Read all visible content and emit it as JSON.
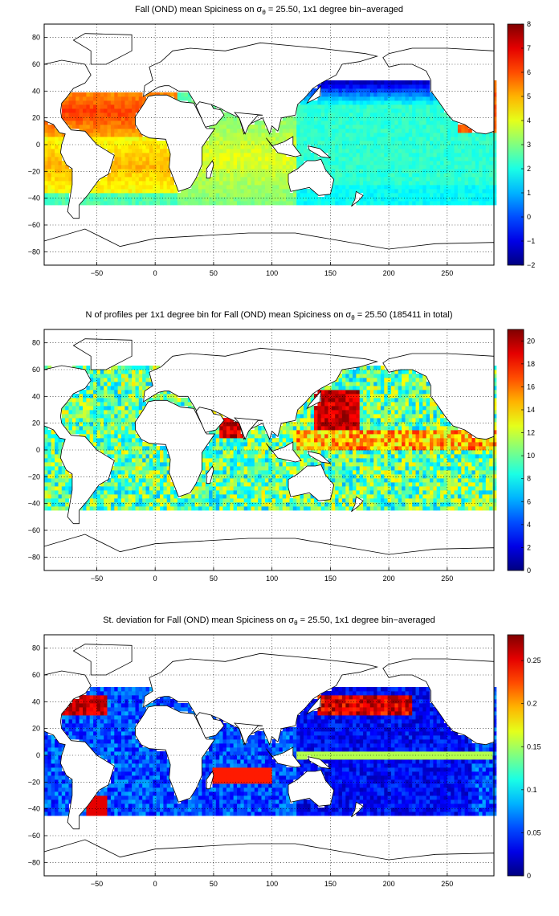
{
  "figure": {
    "panels": [
      {
        "id": "mean",
        "title_pre": "Fall (OND) mean Spiciness on σ",
        "title_sub": "θ",
        "title_post": " = 25.50, 1x1 degree bin−averaged",
        "colorbar": {
          "min": -2,
          "max": 8,
          "ticks": [
            "8",
            "7",
            "6",
            "5",
            "4",
            "3",
            "2",
            "1",
            "0",
            "−1",
            "−2"
          ]
        }
      },
      {
        "id": "count",
        "title_pre": "N of profiles per 1x1 degree bin for Fall (OND) mean Spiciness on σ",
        "title_sub": "θ",
        "title_post": " = 25.50 (185411 in total)",
        "colorbar": {
          "min": 0,
          "max": 21,
          "ticks": [
            "20",
            "18",
            "16",
            "14",
            "12",
            "10",
            "8",
            "6",
            "4",
            "2",
            "0"
          ]
        }
      },
      {
        "id": "stdev",
        "title_pre": "St. deviation for Fall (OND) mean Spiciness on σ",
        "title_sub": "θ",
        "title_post": " = 25.50, 1x1 degree bin−averaged",
        "colorbar": {
          "min": 0,
          "max": 0.28,
          "ticks": [
            "0.25",
            "0.2",
            "0.15",
            "0.1",
            "0.05",
            "0"
          ]
        }
      }
    ],
    "x_ticks": [
      "−50",
      "0",
      "50",
      "100",
      "150",
      "200",
      "250"
    ],
    "y_ticks": [
      "80",
      "60",
      "40",
      "20",
      "0",
      "−20",
      "−40",
      "−60",
      "−80"
    ],
    "colormap": "jet"
  },
  "chart_data": [
    {
      "type": "heatmap",
      "title": "Fall (OND) mean Spiciness on σθ = 25.50, 1x1 degree bin−averaged",
      "xlim": [
        -95,
        290
      ],
      "ylim": [
        -90,
        90
      ],
      "x_ticks": [
        -50,
        0,
        50,
        100,
        150,
        200,
        250
      ],
      "y_ticks": [
        80,
        60,
        40,
        20,
        0,
        -20,
        -40,
        -60,
        -80
      ],
      "colorbar_range": [
        -2,
        8
      ],
      "grid": "dotted",
      "regions": [
        {
          "region": "North Atlantic subtropics",
          "approx_value": 6
        },
        {
          "region": "South Atlantic",
          "approx_value": 5
        },
        {
          "region": "Indian Ocean",
          "approx_value": 3.5
        },
        {
          "region": "North Pacific subpolar",
          "approx_value": -1
        },
        {
          "region": "Pacific tropics",
          "approx_value": 2
        },
        {
          "region": "Southern edge ~40S",
          "approx_value": 1
        }
      ]
    },
    {
      "type": "heatmap",
      "title": "N of profiles per 1x1 degree bin for Fall (OND) mean Spiciness on σθ = 25.50 (185411 in total)",
      "xlim": [
        -95,
        290
      ],
      "ylim": [
        -90,
        90
      ],
      "x_ticks": [
        -50,
        0,
        50,
        100,
        150,
        200,
        250
      ],
      "y_ticks": [
        80,
        60,
        40,
        20,
        0,
        -20,
        -40,
        -60,
        -80
      ],
      "colorbar_range": [
        0,
        21
      ],
      "total_profiles": 185411,
      "regions": [
        {
          "region": "Kuroshio / NW Pacific",
          "approx_value": 20
        },
        {
          "region": "Arabian Sea",
          "approx_value": 18
        },
        {
          "region": "Open ocean typical",
          "approx_value": 8
        }
      ]
    },
    {
      "type": "heatmap",
      "title": "St. deviation for Fall (OND) mean Spiciness on σθ = 25.50, 1x1 degree bin−averaged",
      "xlim": [
        -95,
        290
      ],
      "ylim": [
        -90,
        90
      ],
      "x_ticks": [
        -50,
        0,
        50,
        100,
        150,
        200,
        250
      ],
      "y_ticks": [
        80,
        60,
        40,
        20,
        0,
        -20,
        -40,
        -60,
        -80
      ],
      "colorbar_range": [
        0,
        0.28
      ],
      "regions": [
        {
          "region": "Gulf Stream",
          "approx_value": 0.27
        },
        {
          "region": "Kuroshio extension",
          "approx_value": 0.25
        },
        {
          "region": "Brazil-Malvinas confluence",
          "approx_value": 0.27
        },
        {
          "region": "Pacific interior",
          "approx_value": 0.03
        },
        {
          "region": "Equatorial Pacific band",
          "approx_value": 0.15
        }
      ]
    }
  ]
}
